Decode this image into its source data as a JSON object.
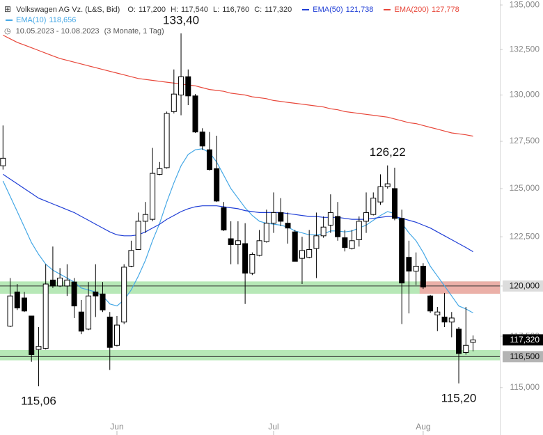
{
  "chart_data": {
    "type": "candlestick",
    "title": "Volkswagen AG Vz. (L&S, Bid)",
    "ohlc": [
      {
        "name": "O:",
        "value": 117.2,
        "label": "117,200"
      },
      {
        "name": "H:",
        "value": 117.54,
        "label": "117,540"
      },
      {
        "name": "L:",
        "value": 116.76,
        "label": "116,760"
      },
      {
        "name": "C:",
        "value": 117.32,
        "label": "117,320"
      }
    ],
    "period": "10.05.2023 - 10.08.2023",
    "period_note": "(3 Monate, 1 Tag)",
    "categories": [
      null,
      null,
      null,
      null,
      null,
      null,
      null,
      null,
      null,
      null,
      null,
      null,
      null,
      null,
      null,
      null,
      "Jun",
      null,
      null,
      null,
      null,
      null,
      null,
      null,
      null,
      null,
      null,
      null,
      null,
      null,
      null,
      null,
      null,
      null,
      null,
      null,
      null,
      null,
      "Jul",
      null,
      null,
      null,
      null,
      null,
      null,
      null,
      null,
      null,
      null,
      null,
      null,
      null,
      null,
      null,
      null,
      null,
      null,
      null,
      null,
      "Aug",
      null,
      null,
      null,
      null,
      null,
      null,
      null
    ],
    "open": [
      126.2,
      118.0,
      119.7,
      119.4,
      118.5,
      116.85,
      116.9,
      120.3,
      120.0,
      120.0,
      120.2,
      118.7,
      117.85,
      119.7,
      119.6,
      118.45,
      117.05,
      118.2,
      121.0,
      121.85,
      123.3,
      123.4,
      125.75,
      126.1,
      129.1,
      130.0,
      131.0,
      129.95,
      128.0,
      127.05,
      126.05,
      124.0,
      122.4,
      122.1,
      122.15,
      120.65,
      121.55,
      122.25,
      123.2,
      123.75,
      123.2,
      122.75,
      121.4,
      121.45,
      121.9,
      122.55,
      123.1,
      123.55,
      122.45,
      121.9,
      122.35,
      123.3,
      123.65,
      124.3,
      125.1,
      125.0,
      123.45,
      121.45,
      120.75,
      121.0,
      119.5,
      118.55,
      118.45,
      118.2,
      117.85,
      116.7,
      117.2
    ],
    "high": [
      128.35,
      120.4,
      120.1,
      119.7,
      118.5,
      117.95,
      121.1,
      122.0,
      120.9,
      121.1,
      120.4,
      119.3,
      120.2,
      121.1,
      120.2,
      118.7,
      118.5,
      121.1,
      122.3,
      123.75,
      124.3,
      127.15,
      126.4,
      129.1,
      131.4,
      133.4,
      131.4,
      130.05,
      128.2,
      128.0,
      127.8,
      124.3,
      123.3,
      123.3,
      123.2,
      121.7,
      122.85,
      123.9,
      124.8,
      124.5,
      123.75,
      122.85,
      122.5,
      122.85,
      123.75,
      123.55,
      124.7,
      124.3,
      122.85,
      122.85,
      123.55,
      124.8,
      124.8,
      125.75,
      126.22,
      126.1,
      123.9,
      122.3,
      121.7,
      121.15,
      119.55,
      118.95,
      119.65,
      118.7,
      117.95,
      118.95,
      117.54
    ],
    "low": [
      126.0,
      117.95,
      118.8,
      118.7,
      116.25,
      115.06,
      116.85,
      119.9,
      119.95,
      119.5,
      118.4,
      117.6,
      117.8,
      118.45,
      118.7,
      115.85,
      117.0,
      118.1,
      120.95,
      121.85,
      122.7,
      123.3,
      125.7,
      126.05,
      129.0,
      128.9,
      129.45,
      127.95,
      127.05,
      125.95,
      124.3,
      122.8,
      121.1,
      121.1,
      119.1,
      120.55,
      121.5,
      122.2,
      122.7,
      123.05,
      122.15,
      121.25,
      120.1,
      121.4,
      120.4,
      122.45,
      122.7,
      122.3,
      121.75,
      121.85,
      122.0,
      122.7,
      123.6,
      124.15,
      125.0,
      123.35,
      118.1,
      118.63,
      120.05,
      119.85,
      118.65,
      117.75,
      117.95,
      117.45,
      115.2,
      116.6,
      116.76
    ],
    "close": [
      126.6,
      119.5,
      118.9,
      118.75,
      116.6,
      117.0,
      120.1,
      120.0,
      120.4,
      120.3,
      119.0,
      117.75,
      119.5,
      119.5,
      118.8,
      116.95,
      118.05,
      120.95,
      121.8,
      123.3,
      123.65,
      125.8,
      126.05,
      129.0,
      130.05,
      131.0,
      129.95,
      128.0,
      127.25,
      126.0,
      124.35,
      122.85,
      122.1,
      122.3,
      120.65,
      121.6,
      122.3,
      123.2,
      123.75,
      123.3,
      122.95,
      121.25,
      121.8,
      121.85,
      122.55,
      123.0,
      123.75,
      122.5,
      121.95,
      122.3,
      123.3,
      123.75,
      124.5,
      125.1,
      125.25,
      123.45,
      120.15,
      120.75,
      121.0,
      119.95,
      118.75,
      118.7,
      118.2,
      118.4,
      116.65,
      117.05,
      117.32
    ],
    "up_color": "#ffffff",
    "down_color": "#000000",
    "series": [
      {
        "name": "EMA(10)",
        "color": "#45a8e6",
        "last_label": "118,656",
        "values": [
          125.4,
          124.6,
          123.8,
          123.0,
          122.2,
          121.6,
          121.1,
          120.8,
          120.6,
          120.4,
          120.2,
          119.9,
          119.8,
          119.7,
          119.5,
          119.1,
          119.0,
          119.3,
          119.8,
          120.5,
          121.3,
          122.3,
          123.2,
          124.3,
          125.3,
          126.2,
          126.8,
          127.05,
          127.1,
          126.9,
          126.4,
          125.7,
          125.0,
          124.5,
          124.0,
          123.6,
          123.3,
          123.2,
          123.15,
          123.1,
          123.0,
          122.8,
          122.7,
          122.6,
          122.6,
          122.65,
          122.8,
          122.8,
          122.75,
          122.8,
          122.95,
          123.1,
          123.35,
          123.6,
          123.8,
          123.7,
          123.2,
          122.7,
          122.3,
          121.7,
          121.0,
          120.5,
          120.0,
          119.5,
          119.0,
          118.85,
          118.656
        ]
      },
      {
        "name": "EMA(50)",
        "color": "#1f3ed6",
        "last_label": "121,738",
        "values": [
          125.75,
          125.5,
          125.25,
          125.0,
          124.75,
          124.5,
          124.35,
          124.2,
          124.05,
          123.9,
          123.75,
          123.55,
          123.35,
          123.15,
          122.95,
          122.75,
          122.6,
          122.55,
          122.55,
          122.6,
          122.75,
          122.95,
          123.15,
          123.4,
          123.6,
          123.8,
          123.95,
          124.05,
          124.1,
          124.1,
          124.1,
          124.05,
          124.0,
          123.95,
          123.85,
          123.8,
          123.75,
          123.75,
          123.75,
          123.75,
          123.7,
          123.65,
          123.6,
          123.55,
          123.55,
          123.5,
          123.5,
          123.5,
          123.45,
          123.4,
          123.4,
          123.4,
          123.45,
          123.5,
          123.55,
          123.55,
          123.45,
          123.35,
          123.25,
          123.1,
          122.95,
          122.75,
          122.55,
          122.35,
          122.15,
          121.95,
          121.738
        ]
      },
      {
        "name": "EMA(200)",
        "color": "#e8473a",
        "last_label": "127,778",
        "values": [
          133.3,
          133.1,
          132.9,
          132.75,
          132.6,
          132.45,
          132.3,
          132.15,
          132.0,
          131.9,
          131.8,
          131.7,
          131.6,
          131.5,
          131.4,
          131.3,
          131.2,
          131.1,
          131.0,
          130.9,
          130.85,
          130.8,
          130.75,
          130.7,
          130.65,
          130.6,
          130.55,
          130.5,
          130.4,
          130.3,
          130.25,
          130.2,
          130.1,
          130.05,
          130.0,
          129.9,
          129.85,
          129.8,
          129.7,
          129.65,
          129.6,
          129.55,
          129.5,
          129.45,
          129.4,
          129.35,
          129.25,
          129.2,
          129.1,
          129.05,
          129.0,
          128.95,
          128.9,
          128.85,
          128.8,
          128.7,
          128.6,
          128.5,
          128.45,
          128.35,
          128.25,
          128.15,
          128.05,
          127.95,
          127.9,
          127.85,
          127.778
        ]
      }
    ],
    "yscale": "log",
    "ylim": [
      113.66,
      135.28
    ],
    "yticks": [
      {
        "value": 115,
        "label": "115,000"
      },
      {
        "value": 117.5,
        "label": "117,500"
      },
      {
        "value": 120,
        "label": "120,000"
      },
      {
        "value": 122.5,
        "label": "122,500"
      },
      {
        "value": 125,
        "label": "125,000"
      },
      {
        "value": 127.5,
        "label": "127,500"
      },
      {
        "value": 130,
        "label": "130,000"
      },
      {
        "value": 132.5,
        "label": "132,500"
      },
      {
        "value": 135,
        "label": "135,000"
      }
    ],
    "levels": [
      {
        "value": 120,
        "label": "120,000",
        "band": [
          119.61,
          120.23
        ],
        "color": "#9fe09f",
        "tag_color": "#dcdcdc"
      },
      {
        "value": 116.5,
        "label": "116,500",
        "band": [
          116.32,
          116.82
        ],
        "color": "#9fe09f",
        "tag_color": "#b4b4b4"
      }
    ],
    "highlight": {
      "band": [
        119.61,
        120.23
      ],
      "color": "#f4a6a6",
      "from_index": 59
    },
    "last": {
      "value": 117.32,
      "label": "117,320",
      "tag_color": "#000000"
    },
    "annotations": [
      {
        "value": 133.4,
        "label": "133,40"
      },
      {
        "value": 126.22,
        "label": "126,22"
      },
      {
        "value": 115.06,
        "label": "115,06"
      },
      {
        "value": 115.2,
        "label": "115,20"
      }
    ]
  }
}
